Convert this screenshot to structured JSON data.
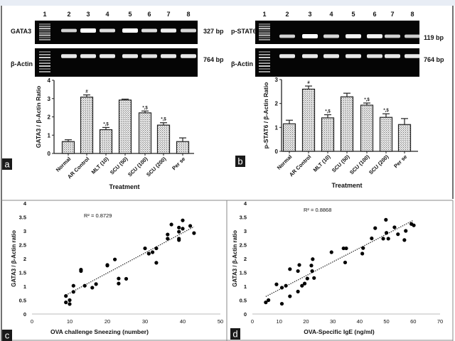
{
  "gels": [
    {
      "lanes": [
        "1",
        "2",
        "3",
        "4",
        "5",
        "6",
        "7",
        "8"
      ],
      "target_label": "GATA3",
      "target_size": "327 bp",
      "control_label": "β-Actin",
      "control_size": "764 bp",
      "target_intensity": [
        0.6,
        1.0,
        0.7,
        1.0,
        0.7,
        0.85,
        0.65
      ],
      "control_intensity": [
        0.8,
        0.8,
        0.8,
        0.8,
        0.75,
        0.8,
        0.8
      ]
    },
    {
      "lanes": [
        "1",
        "2",
        "3",
        "4",
        "5",
        "6",
        "7",
        "8"
      ],
      "target_label": "p-STAT6",
      "target_size": "119 bp",
      "control_label": "β-Actin",
      "control_size": "764 bp",
      "target_intensity": [
        0.6,
        1.0,
        0.65,
        0.9,
        0.9,
        0.6,
        0.55
      ],
      "control_intensity": [
        0.8,
        0.8,
        0.8,
        0.8,
        0.75,
        0.8,
        0.8
      ]
    }
  ],
  "chart_data": [
    {
      "panel": "a",
      "type": "bar",
      "title": "",
      "categories": [
        "Normal",
        "AR Control",
        "MLT (10)",
        "SCU (50)",
        "SCU (100)",
        "SCU (200)",
        "Per se"
      ],
      "values": [
        0.65,
        3.08,
        1.3,
        2.92,
        2.22,
        1.55,
        0.65
      ],
      "errors": [
        0.1,
        0.12,
        0.12,
        0.05,
        0.1,
        0.13,
        0.2
      ],
      "annotations": [
        "",
        "#",
        "*,$",
        "",
        "*,$",
        "*,$",
        ""
      ],
      "xlabel": "Treatment",
      "ylabel": "GATA3 / β-Actin Ratio",
      "ylim": [
        0,
        4
      ],
      "yticks": [
        "0",
        "1",
        "2",
        "3",
        "4"
      ]
    },
    {
      "panel": "b",
      "type": "bar",
      "title": "",
      "categories": [
        "Normal",
        "AR Control",
        "MLT (10)",
        "SCU (50)",
        "SCU (100)",
        "SCU (200)",
        "Per se"
      ],
      "values": [
        1.15,
        2.6,
        1.4,
        2.28,
        1.93,
        1.42,
        1.12
      ],
      "errors": [
        0.15,
        0.13,
        0.13,
        0.15,
        0.09,
        0.15,
        0.25
      ],
      "annotations": [
        "",
        "#",
        "*,$",
        "",
        "*,$",
        "*,$",
        ""
      ],
      "xlabel": "Treatment",
      "ylabel": "p-STAT6 / β-Actin Ratio",
      "ylim": [
        0,
        3
      ],
      "yticks": [
        "0",
        "1",
        "2",
        "3"
      ]
    },
    {
      "panel": "c",
      "type": "scatter",
      "xlabel": "OVA challenge  Sneezing (number)",
      "ylabel": "GATA3 / β-Actin ratio",
      "annotation": "R² = 0.8729",
      "xlim": [
        0,
        50
      ],
      "ylim": [
        0,
        4
      ],
      "xticks": [
        "0",
        "10",
        "20",
        "30",
        "40",
        "50"
      ],
      "yticks": [
        "0",
        "0.5",
        "1",
        "1.5",
        "2",
        "2.5",
        "3",
        "3.5",
        "4"
      ],
      "trendline": [
        [
          9,
          0.68
        ],
        [
          43,
          3.15
        ]
      ],
      "points": [
        [
          9,
          0.65
        ],
        [
          9,
          0.42
        ],
        [
          10,
          0.5
        ],
        [
          10,
          0.36
        ],
        [
          11,
          1.02
        ],
        [
          11,
          0.8
        ],
        [
          13,
          1.6
        ],
        [
          13,
          1.55
        ],
        [
          14,
          1.02
        ],
        [
          16,
          0.95
        ],
        [
          17,
          1.08
        ],
        [
          20,
          1.75
        ],
        [
          20,
          1.77
        ],
        [
          22,
          1.97
        ],
        [
          23,
          1.28
        ],
        [
          23,
          1.1
        ],
        [
          25,
          1.27
        ],
        [
          30,
          2.37
        ],
        [
          31,
          2.18
        ],
        [
          32,
          2.23
        ],
        [
          33,
          2.37
        ],
        [
          33,
          1.85
        ],
        [
          36,
          2.87
        ],
        [
          36,
          2.72
        ],
        [
          37,
          3.23
        ],
        [
          39,
          3.12
        ],
        [
          39,
          2.97
        ],
        [
          39,
          2.72
        ],
        [
          39,
          2.67
        ],
        [
          40,
          3.38
        ],
        [
          40,
          3.08
        ],
        [
          42,
          3.18
        ],
        [
          43,
          2.92
        ]
      ]
    },
    {
      "panel": "d",
      "type": "scatter",
      "xlabel": "OVA-Specific IgE (ng/ml)",
      "ylabel": "GATA3 / β-Actin ratio",
      "annotation": "R² = 0.8868",
      "xlim": [
        0,
        70
      ],
      "ylim": [
        0,
        4
      ],
      "xticks": [
        "0",
        "10",
        "20",
        "30",
        "40",
        "50",
        "60",
        "70"
      ],
      "yticks": [
        "0",
        "0.5",
        "1",
        "1.5",
        "2",
        "2.5",
        "3",
        "3.5",
        "4"
      ],
      "trendline": [
        [
          5,
          0.63
        ],
        [
          60,
          3.38
        ]
      ],
      "points": [
        [
          5,
          0.42
        ],
        [
          6,
          0.5
        ],
        [
          9,
          1.07
        ],
        [
          11,
          0.95
        ],
        [
          11,
          0.37
        ],
        [
          12.5,
          1.02
        ],
        [
          14,
          1.62
        ],
        [
          14,
          0.64
        ],
        [
          17,
          1.55
        ],
        [
          17,
          0.81
        ],
        [
          17.5,
          1.77
        ],
        [
          18.5,
          1.02
        ],
        [
          19.5,
          1.1
        ],
        [
          20.5,
          1.28
        ],
        [
          22,
          1.75
        ],
        [
          22.3,
          1.55
        ],
        [
          22.5,
          1.98
        ],
        [
          23,
          1.3
        ],
        [
          29.5,
          2.23
        ],
        [
          34,
          2.37
        ],
        [
          35,
          2.37
        ],
        [
          34.6,
          1.86
        ],
        [
          41,
          2.18
        ],
        [
          41.3,
          2.38
        ],
        [
          44.5,
          2.73
        ],
        [
          45.8,
          3.1
        ],
        [
          48.8,
          2.72
        ],
        [
          49.8,
          3.4
        ],
        [
          50,
          2.93
        ],
        [
          50.7,
          2.72
        ],
        [
          53,
          3.13
        ],
        [
          54.3,
          2.88
        ],
        [
          56.7,
          2.67
        ],
        [
          57.2,
          3.0
        ],
        [
          59.3,
          3.25
        ],
        [
          60.2,
          3.2
        ]
      ]
    }
  ],
  "panel_labels": [
    "a",
    "b",
    "c",
    "d"
  ]
}
